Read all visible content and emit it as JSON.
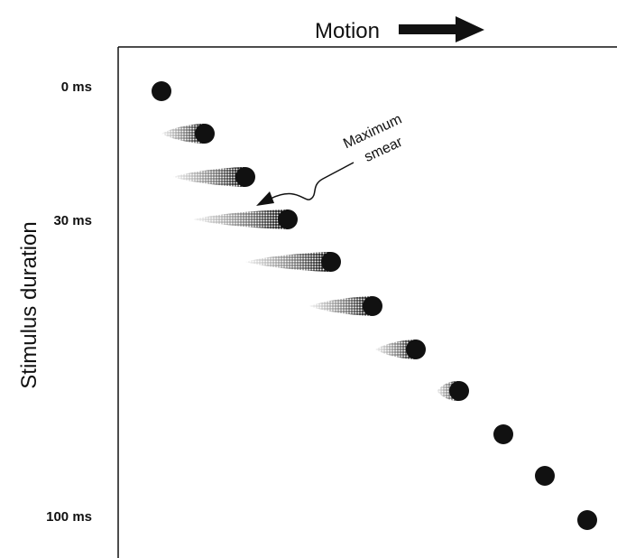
{
  "header": {
    "title": "Motion"
  },
  "axis": {
    "label": "Stimulus duration",
    "ticks": [
      "0 ms",
      "30 ms",
      "100 ms"
    ]
  },
  "annotation": {
    "lines": [
      "Maximum",
      "smear"
    ]
  }
}
